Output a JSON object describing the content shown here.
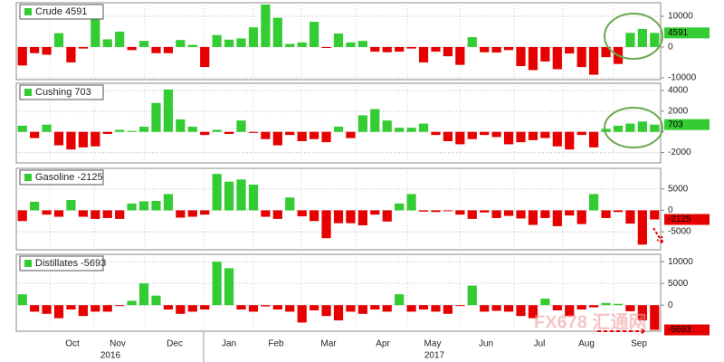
{
  "chart_data": [
    {
      "type": "bar",
      "series": [
        {
          "name": "Crude",
          "color": "#33cc33",
          "values": [
            -6000,
            -2000,
            -2500,
            4500,
            -5000,
            -500,
            14000,
            2500,
            5000,
            -1000,
            2000,
            -2000,
            -2000,
            2300,
            700,
            -6500,
            3900,
            2400,
            2800,
            6400,
            13800,
            9500,
            1000,
            1500,
            8200,
            -300,
            4400,
            1500,
            2000,
            -1500,
            -1700,
            -1500,
            -500,
            -5000,
            -1500,
            -3000,
            -5800,
            3200,
            -1700,
            -1800,
            -1000,
            -6200,
            -7500,
            -4700,
            -7200,
            -2100,
            -6500,
            -9000,
            -3300,
            -5500,
            4600,
            5900,
            4591
          ]
        }
      ],
      "negative_color": "#e60000",
      "ylim": [
        -10600,
        14400
      ],
      "yticks": [
        -10000,
        0,
        10000
      ],
      "grid": true
    },
    {
      "type": "bar",
      "series": [
        {
          "name": "Cushing",
          "color": "#33cc33",
          "values": [
            600,
            -600,
            700,
            -1300,
            -1700,
            -1500,
            -1400,
            -200,
            200,
            100,
            500,
            2800,
            4100,
            1200,
            500,
            -300,
            200,
            -200,
            1100,
            -100,
            -700,
            -1300,
            -300,
            -900,
            -700,
            -1000,
            500,
            -600,
            1600,
            2200,
            1100,
            400,
            400,
            800,
            -300,
            -900,
            -1200,
            -700,
            -300,
            -500,
            -1200,
            -1000,
            -800,
            -600,
            -1400,
            -1700,
            -300,
            -1500,
            300,
            600,
            800,
            1000,
            703
          ]
        }
      ],
      "negative_color": "#e60000",
      "ylim": [
        -3000,
        4700
      ],
      "yticks": [
        -2000,
        0,
        2000,
        4000
      ],
      "grid": true
    },
    {
      "type": "bar",
      "series": [
        {
          "name": "Gasoline",
          "color": "#33cc33",
          "values": [
            -2500,
            2000,
            -1000,
            -1500,
            2400,
            -1500,
            -2000,
            -1800,
            -2000,
            1600,
            2100,
            2200,
            3800,
            -1700,
            -1500,
            -1000,
            8500,
            6700,
            7200,
            6000,
            -1500,
            -2000,
            3000,
            -1400,
            -2500,
            -6500,
            -3000,
            -3000,
            -3500,
            -1000,
            -2600,
            1600,
            3800,
            -300,
            -400,
            -200,
            -1000,
            -2000,
            -500,
            -1800,
            -1300,
            -1900,
            -3400,
            -1800,
            -3700,
            -1200,
            -3200,
            3800,
            -1800,
            -400,
            -3100,
            -8000,
            -2125
          ]
        }
      ],
      "negative_color": "#e60000",
      "ylim": [
        -9200,
        9800
      ],
      "yticks": [
        -5000,
        0,
        5000
      ],
      "grid": true
    },
    {
      "type": "bar",
      "series": [
        {
          "name": "Distillates",
          "color": "#33cc33",
          "values": [
            2500,
            -1500,
            -2000,
            -3000,
            -1000,
            -2500,
            -1500,
            -1500,
            -200,
            1000,
            5000,
            2200,
            -1000,
            -2000,
            -1500,
            -1000,
            10000,
            8500,
            -1000,
            -1500,
            -300,
            -1000,
            -1500,
            -4000,
            -1200,
            -2500,
            -3500,
            -1500,
            -2000,
            -1000,
            -1500,
            2500,
            -1500,
            -1000,
            -1500,
            -2000,
            -200,
            4500,
            -1500,
            -1300,
            -1500,
            -2500,
            -3000,
            1500,
            -1200,
            -2500,
            -1000,
            -500,
            500,
            300,
            -1400,
            -3500,
            -5693
          ]
        }
      ],
      "negative_color": "#e60000",
      "ylim": [
        -6000,
        11700
      ],
      "yticks": [
        0,
        5000,
        10000
      ],
      "grid": true
    }
  ],
  "x_axis": {
    "months": [
      "Oct",
      "Nov",
      "Dec",
      "Jan",
      "Feb",
      "Mar",
      "Apr",
      "May",
      "Jun",
      "Jul",
      "Aug",
      "Sep"
    ],
    "years": [
      "2016",
      "2017"
    ]
  },
  "watermark": "FX678 汇通网"
}
